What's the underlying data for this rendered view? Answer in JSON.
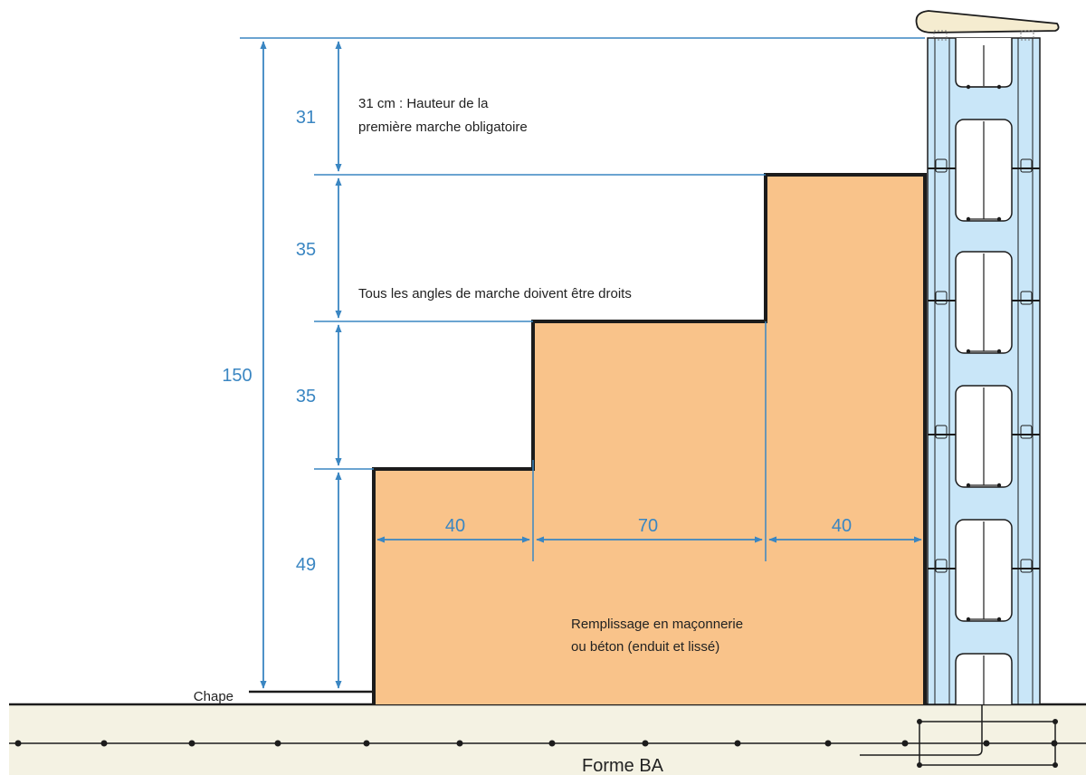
{
  "colors": {
    "dimension": "#3a86c2",
    "fill": "#f9c38a",
    "outline": "#1c1c1c",
    "slab": "#f4f2e3",
    "block": "#c9e6f8",
    "coping": "#f5ecd0"
  },
  "dimensions": {
    "total_height": "150",
    "step1_height": "31",
    "step2_height": "35",
    "step3_height": "35",
    "base_height": "49",
    "tread_left": "40",
    "tread_middle": "70",
    "tread_right": "40"
  },
  "notes": {
    "first_step_line1": "31 cm : Hauteur de la",
    "first_step_line2": "première marche obligatoire",
    "angles": "Tous les angles de marche doivent être droits",
    "fill_line1": "Remplissage en maçonnerie",
    "fill_line2": "ou béton (enduit et lissé)"
  },
  "labels": {
    "screed": "Chape",
    "slab": "Forme BA"
  },
  "icons": {
    "wall": "hollow-block-wall-icon",
    "coping": "coping-stone-icon"
  }
}
